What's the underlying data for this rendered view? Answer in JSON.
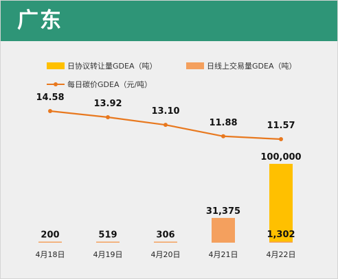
{
  "header": {
    "title": "广东"
  },
  "colors": {
    "header_bg": "#2e9577",
    "agreement_bar": "#ffc000",
    "online_bar": "#f4a05e",
    "price_line": "#e8781e"
  },
  "chart_data": {
    "type": "bar",
    "categories": [
      "4月18日",
      "4月19日",
      "4月20日",
      "4月21日",
      "4月22日"
    ],
    "series": [
      {
        "name": "日协议转让量GDEA（吨）",
        "type": "bar",
        "values": [
          null,
          null,
          null,
          null,
          100000
        ],
        "labels": [
          "",
          "",
          "",
          "",
          "100,000"
        ]
      },
      {
        "name": "日线上交易量GDEA（吨）",
        "type": "bar",
        "values": [
          200,
          519,
          306,
          31375,
          1302
        ],
        "labels": [
          "200",
          "519",
          "306",
          "31,375",
          "1,302"
        ]
      },
      {
        "name": "每日碳价GDEA（元/吨）",
        "type": "line",
        "axis": "secondary",
        "values": [
          14.58,
          13.92,
          13.1,
          11.88,
          11.57
        ],
        "labels": [
          "14.58",
          "13.92",
          "13.10",
          "11.88",
          "11.57"
        ]
      }
    ],
    "legend_position": "top",
    "grid": false
  }
}
